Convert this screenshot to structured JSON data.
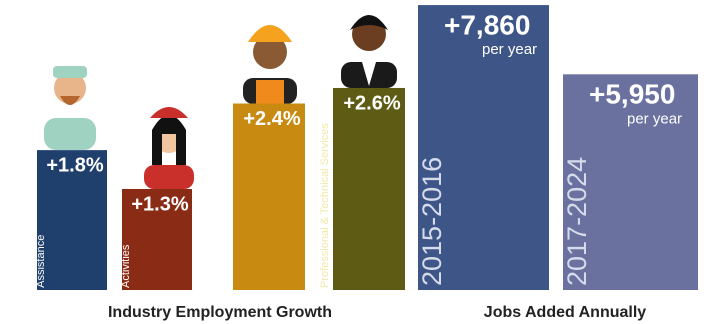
{
  "chart_data": [
    {
      "type": "bar",
      "title": "Industry Employment Growth",
      "categories": [
        "Health Care & Social Assistance",
        "Leisure Activities",
        "Construction",
        "Professional & Technical Services"
      ],
      "values": [
        1.8,
        1.3,
        2.4,
        2.6
      ],
      "value_labels": [
        "+1.8%",
        "+1.3%",
        "+2.4%",
        "+2.6%"
      ],
      "colors": [
        "#1f3f6d",
        "#8a2b15",
        "#c98a12",
        "#5e5c14"
      ],
      "ylim": [
        0,
        3.7
      ]
    },
    {
      "type": "bar",
      "title": "Jobs Added Annually",
      "categories": [
        "2015-2016",
        "2017-2024"
      ],
      "values": [
        7860,
        5950
      ],
      "value_labels": [
        "+7,860",
        "+5,950"
      ],
      "value_note": "per year",
      "colors": [
        "#3e5588",
        "#6b719f"
      ],
      "ylim": [
        0,
        8000
      ]
    }
  ]
}
